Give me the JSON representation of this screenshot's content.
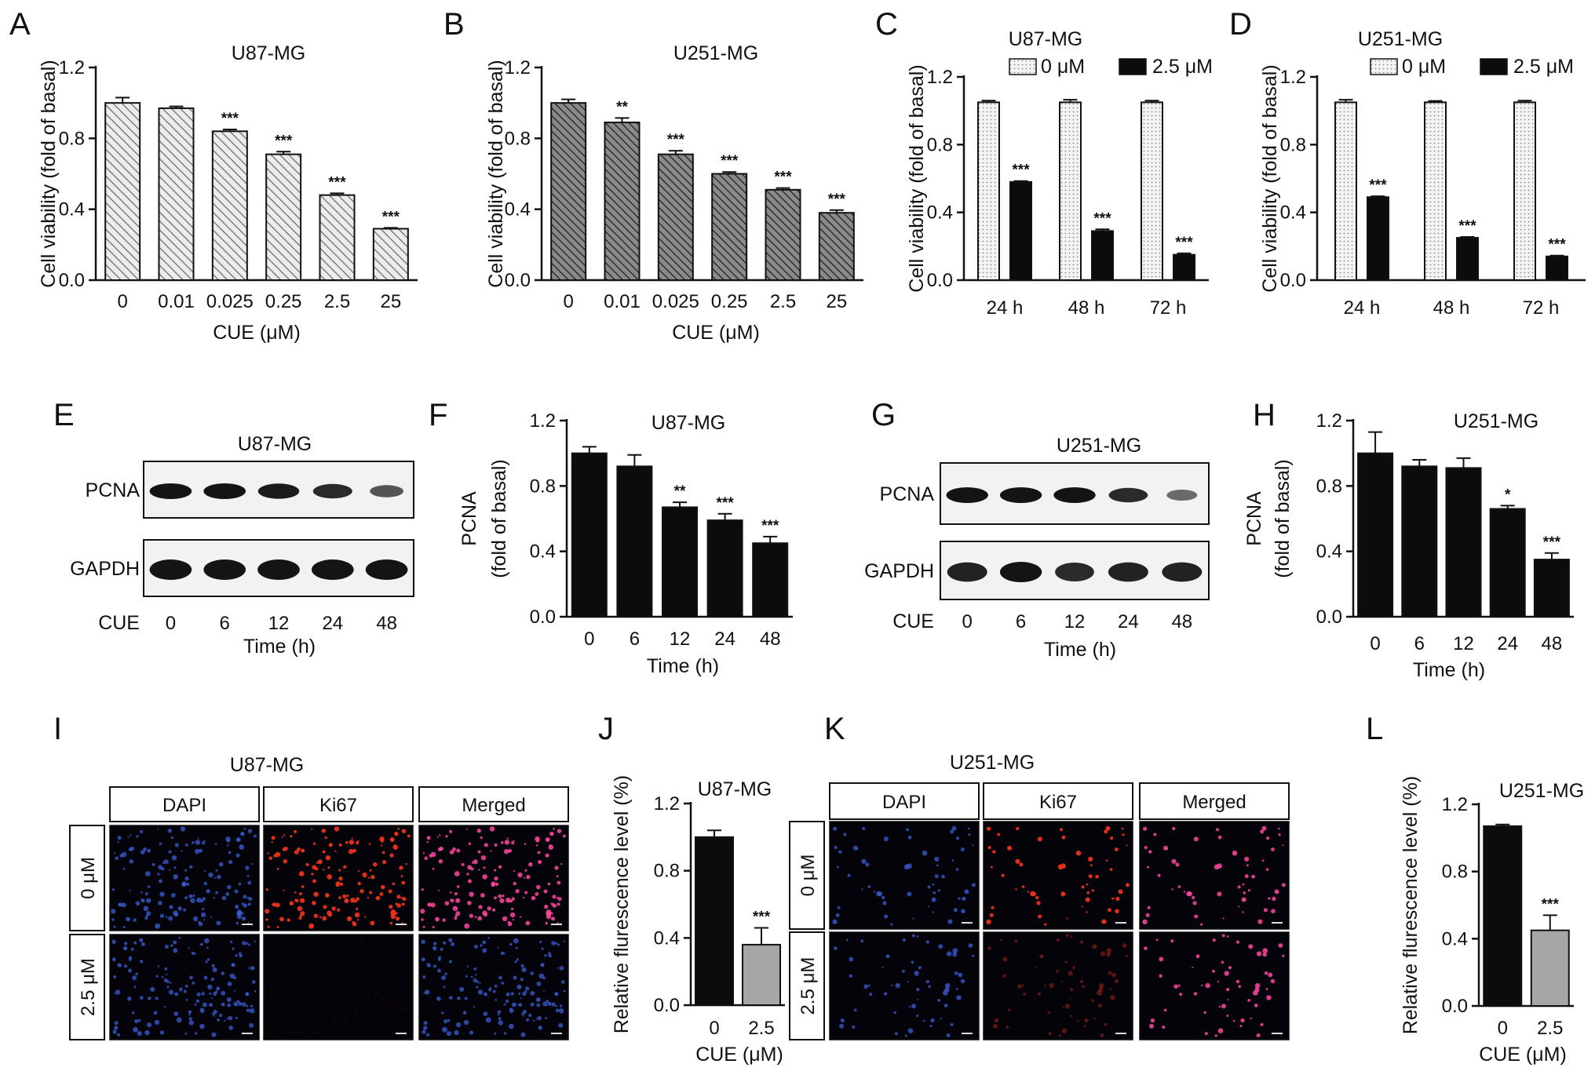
{
  "colors": {
    "hatch_light": "#c4c4c4",
    "hatch_dark": "#575757",
    "bar_black": "#0c0c0c",
    "bar_gray": "#a6a6a6",
    "band": "#141414",
    "dapi_blue": "#3a5fd6",
    "ki67_red": "#e8331c",
    "merged_pink": "#ff46a0",
    "micrograph_bg": "#05030a"
  },
  "icons": {
    "dotted_box": "dotted-legend-swatch-icon",
    "solid_box": "solid-legend-swatch-icon"
  },
  "chart_data": [
    {
      "panel": "A",
      "type": "bar",
      "title": "U87-MG",
      "xlabel": "CUE (μM)",
      "ylabel": "Cell viability (fold of basal)",
      "ylim": [
        0,
        1.2
      ],
      "yticks": [
        "0.0",
        "0.4",
        "0.8",
        "1.2"
      ],
      "fill": "hatch-light",
      "categories": [
        "0",
        "0.01",
        "0.025",
        "0.25",
        "2.5",
        "25"
      ],
      "values": [
        1.0,
        0.97,
        0.84,
        0.71,
        0.48,
        0.29
      ],
      "errors": [
        0.03,
        0.01,
        0.01,
        0.015,
        0.01,
        0.005
      ],
      "sig": [
        "",
        "",
        "***",
        "***",
        "***",
        "***"
      ]
    },
    {
      "panel": "B",
      "type": "bar",
      "title": "U251-MG",
      "xlabel": "CUE (μM)",
      "ylabel": "Cell viability (fold of basal)",
      "ylim": [
        0,
        1.2
      ],
      "yticks": [
        "0.0",
        "0.4",
        "0.8",
        "1.2"
      ],
      "fill": "hatch-dark",
      "categories": [
        "0",
        "0.01",
        "0.025",
        "0.25",
        "2.5",
        "25"
      ],
      "values": [
        1.0,
        0.89,
        0.71,
        0.6,
        0.51,
        0.38
      ],
      "errors": [
        0.02,
        0.025,
        0.02,
        0.01,
        0.01,
        0.015
      ],
      "sig": [
        "",
        "**",
        "***",
        "***",
        "***",
        "***"
      ]
    },
    {
      "panel": "C",
      "type": "bar",
      "title": "U87-MG",
      "ylabel": "Cell viability (fold of basal)",
      "ylim": [
        0,
        1.2
      ],
      "yticks": [
        "0.0",
        "0.4",
        "0.8",
        "1.2"
      ],
      "legend": "top",
      "categories": [
        "24 h",
        "48 h",
        "72 h"
      ],
      "series": [
        {
          "name": "0 μM",
          "fill": "dotted",
          "values": [
            1.05,
            1.05,
            1.05
          ],
          "errors": [
            0.01,
            0.015,
            0.01
          ],
          "sig": [
            "",
            "",
            ""
          ]
        },
        {
          "name": "2.5 μM",
          "fill": "black",
          "values": [
            0.58,
            0.29,
            0.15
          ],
          "errors": [
            0.005,
            0.01,
            0.008
          ],
          "sig": [
            "***",
            "***",
            "***"
          ]
        }
      ]
    },
    {
      "panel": "D",
      "type": "bar",
      "title": "U251-MG",
      "ylabel": "Cell viability (fold of basal)",
      "ylim": [
        0,
        1.2
      ],
      "yticks": [
        "0.0",
        "0.4",
        "0.8",
        "1.2"
      ],
      "legend": "top",
      "categories": [
        "24 h",
        "48 h",
        "72 h"
      ],
      "series": [
        {
          "name": "0 μM",
          "fill": "dotted",
          "values": [
            1.05,
            1.05,
            1.05
          ],
          "errors": [
            0.015,
            0.008,
            0.01
          ],
          "sig": [
            "",
            "",
            ""
          ]
        },
        {
          "name": "2.5 μM",
          "fill": "black",
          "values": [
            0.49,
            0.25,
            0.14
          ],
          "errors": [
            0.005,
            0.005,
            0.005
          ],
          "sig": [
            "***",
            "***",
            "***"
          ]
        }
      ]
    },
    {
      "panel": "F",
      "type": "bar",
      "title": "U87-MG",
      "xlabel": "Time (h)",
      "ylabel": [
        "PCNA",
        "(fold of basal)"
      ],
      "ylim": [
        0,
        1.2
      ],
      "yticks": [
        "0.0",
        "0.4",
        "0.8",
        "1.2"
      ],
      "fill": "black",
      "categories": [
        "0",
        "6",
        "12",
        "24",
        "48"
      ],
      "values": [
        1.0,
        0.92,
        0.67,
        0.59,
        0.45
      ],
      "errors": [
        0.04,
        0.07,
        0.03,
        0.04,
        0.04
      ],
      "sig": [
        "",
        "",
        "**",
        "***",
        "***"
      ]
    },
    {
      "panel": "H",
      "type": "bar",
      "title": "U251-MG",
      "xlabel": "Time (h)",
      "ylabel": [
        "PCNA",
        "(fold of basal)"
      ],
      "ylim": [
        0,
        1.2
      ],
      "yticks": [
        "0.0",
        "0.4",
        "0.8",
        "1.2"
      ],
      "fill": "black",
      "categories": [
        "0",
        "6",
        "12",
        "24",
        "48"
      ],
      "values": [
        1.0,
        0.92,
        0.91,
        0.66,
        0.35
      ],
      "errors": [
        0.13,
        0.04,
        0.06,
        0.02,
        0.04
      ],
      "sig": [
        "",
        "",
        "",
        "*",
        "***"
      ]
    },
    {
      "panel": "J",
      "type": "bar",
      "title": "U87-MG",
      "xlabel": "CUE (μM)",
      "ylabel": "Relative flurescence level (%)",
      "ylim": [
        0,
        1.2
      ],
      "yticks": [
        "0.0",
        "0.4",
        "0.8",
        "1.2"
      ],
      "categories": [
        "0",
        "2.5"
      ],
      "fills": [
        "black",
        "gray"
      ],
      "values": [
        1.0,
        0.36
      ],
      "errors": [
        0.04,
        0.1
      ],
      "sig": [
        "",
        "***"
      ]
    },
    {
      "panel": "L",
      "type": "bar",
      "title": "U251-MG",
      "xlabel": "CUE (μM)",
      "ylabel": "Relative flurescence level (%)",
      "ylim": [
        0,
        1.2
      ],
      "yticks": [
        "0.0",
        "0.4",
        "0.8",
        "1.2"
      ],
      "categories": [
        "0",
        "2.5"
      ],
      "fills": [
        "black",
        "gray"
      ],
      "values": [
        1.07,
        0.45
      ],
      "errors": [
        0.01,
        0.09
      ],
      "sig": [
        "",
        "***"
      ]
    }
  ],
  "blots": [
    {
      "panel": "E",
      "title": "U87-MG",
      "proteins": [
        "PCNA",
        "GAPDH"
      ],
      "treatment": "CUE",
      "lanes": [
        "0",
        "6",
        "12",
        "24",
        "48"
      ],
      "xlabel": "Time (h)",
      "pcna_intensity": [
        1.0,
        1.0,
        0.95,
        0.85,
        0.55
      ],
      "gapdh_intensity": [
        1.0,
        1.0,
        1.0,
        1.0,
        1.0
      ]
    },
    {
      "panel": "G",
      "title": "U251-MG",
      "proteins": [
        "PCNA",
        "GAPDH"
      ],
      "treatment": "CUE",
      "lanes": [
        "0",
        "6",
        "12",
        "24",
        "48"
      ],
      "xlabel": "Time (h)",
      "pcna_intensity": [
        1.0,
        1.0,
        1.0,
        0.85,
        0.4
      ],
      "gapdh_intensity": [
        0.9,
        1.0,
        0.85,
        0.9,
        0.9
      ]
    }
  ],
  "micrographs": [
    {
      "panel": "I",
      "title": "U87-MG",
      "columns": [
        "DAPI",
        "Ki67",
        "Merged"
      ],
      "rows": [
        "0 μM",
        "2.5 μM"
      ],
      "ki67_level": [
        1.0,
        0.03
      ]
    },
    {
      "panel": "K",
      "title": "U251-MG",
      "columns": [
        "DAPI",
        "Ki67",
        "Merged"
      ],
      "rows": [
        "0 μM",
        "2.5 μM"
      ],
      "ki67_level": [
        1.0,
        0.4
      ]
    }
  ],
  "panel_letters": [
    "A",
    "B",
    "C",
    "D",
    "E",
    "F",
    "G",
    "H",
    "I",
    "J",
    "K",
    "L"
  ]
}
